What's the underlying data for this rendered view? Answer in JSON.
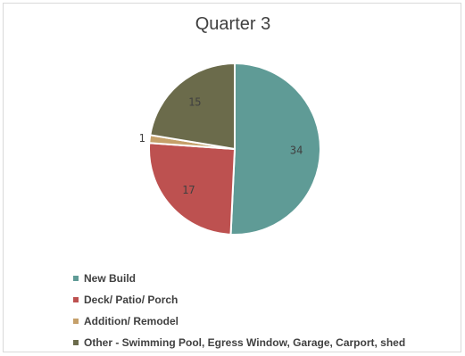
{
  "chart_data": {
    "type": "pie",
    "title": "Quarter 3",
    "categories": [
      "New Build",
      "Deck/ Patio/ Porch",
      "Addition/ Remodel",
      "Other - Swimming Pool, Egress Window, Garage, Carport, shed"
    ],
    "values": [
      34,
      17,
      1,
      15
    ],
    "colors": [
      "#5f9b96",
      "#bd5150",
      "#c5a06a",
      "#6b6b4b"
    ],
    "data_labels": [
      "34",
      "17",
      "1",
      "15"
    ],
    "legend_position": "bottom"
  }
}
